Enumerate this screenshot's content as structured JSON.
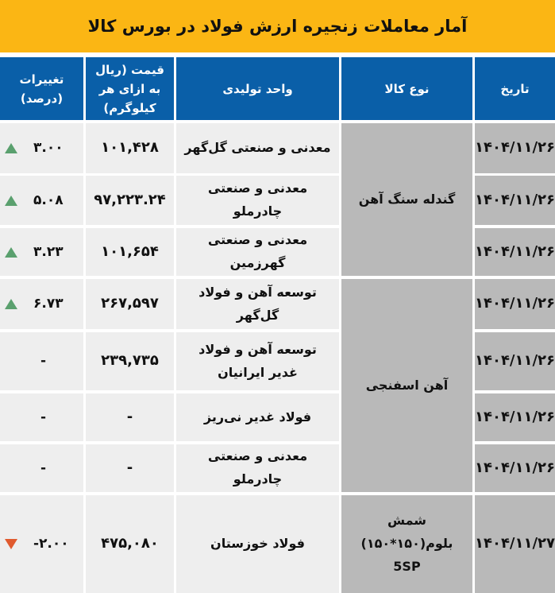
{
  "title": "آمار معاملات زنجیره ارزش فولاد در بورس کالا",
  "headers": {
    "date": "تاریخ",
    "type": "نوع کالا",
    "unit": "واحد تولیدی",
    "price": "قیمت (ریال به ازای هر کیلوگرم)",
    "change": "تغییرات (درصد)"
  },
  "groups": [
    {
      "type": "گندله سنگ آهن"
    },
    {
      "type": "آهن اسفنجی"
    },
    {
      "type": "شمش بلوم(۱۵۰*۱۵۰) 5SP"
    }
  ],
  "rows": [
    {
      "date": "۱۴۰۴/۱۱/۲۶",
      "unit": "معدنی و صنعتی گل‌گهر",
      "price": "۱۰۱,۴۲۸",
      "change": "۳.۰۰",
      "direction": "up"
    },
    {
      "date": "۱۴۰۴/۱۱/۲۶",
      "unit": "معدنی و صنعتی چادرملو",
      "price": "۹۷,۲۲۳.۲۴",
      "change": "۵.۰۸",
      "direction": "up"
    },
    {
      "date": "۱۴۰۴/۱۱/۲۶",
      "unit": "معدنی و صنعتی گهرزمین",
      "price": "۱۰۱,۶۵۴",
      "change": "۳.۲۳",
      "direction": "up"
    },
    {
      "date": "۱۴۰۴/۱۱/۲۶",
      "unit": "توسعه آهن و فولاد گل‌گهر",
      "price": "۲۶۷,۵۹۷",
      "change": "۶.۷۳",
      "direction": "up"
    },
    {
      "date": "۱۴۰۴/۱۱/۲۶",
      "unit": "توسعه آهن و فولاد غدیر ایرانیان",
      "price": "۲۳۹,۷۳۵",
      "change": "-",
      "direction": "none"
    },
    {
      "date": "۱۴۰۴/۱۱/۲۶",
      "unit": "فولاد غدیر نی‌ریز",
      "price": "-",
      "change": "-",
      "direction": "none"
    },
    {
      "date": "۱۴۰۴/۱۱/۲۶",
      "unit": "معدنی و صنعتی چادرملو",
      "price": "-",
      "change": "-",
      "direction": "none"
    },
    {
      "date": "۱۴۰۴/۱۱/۲۷",
      "unit": "فولاد خوزستان",
      "price": "۴۷۵,۰۸۰",
      "change": "-۲.۰۰",
      "direction": "down"
    }
  ],
  "colors": {
    "title_bg": "#fbb614",
    "header_bg": "#0a5fa8",
    "up": "#5aa06e",
    "down": "#e05a2e"
  }
}
